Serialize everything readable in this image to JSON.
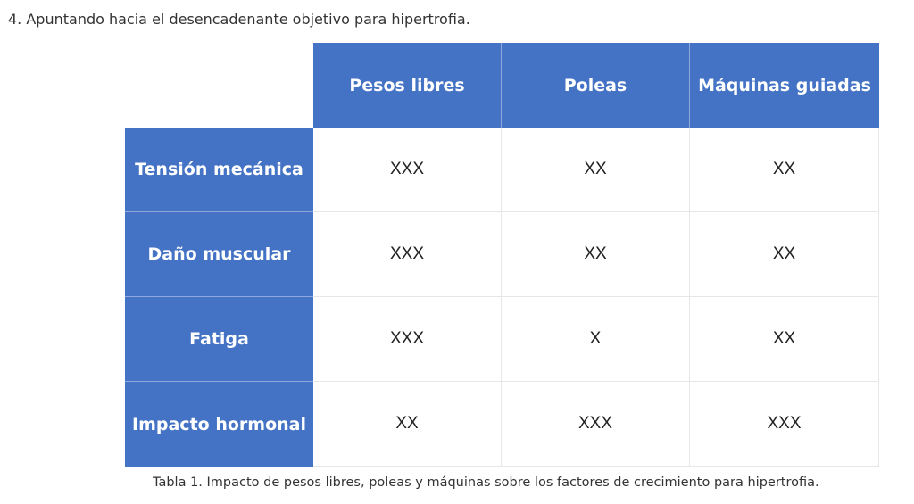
{
  "heading": "4. Apuntando hacia el desencadenante objetivo para hipertrofia.",
  "table": {
    "columns": [
      "Pesos libres",
      "Poleas",
      "Máquinas guiadas"
    ],
    "rows": [
      {
        "label": "Tensión mecánica",
        "values": [
          "XXX",
          "XX",
          "XX"
        ]
      },
      {
        "label": "Daño muscular",
        "values": [
          "XXX",
          "XX",
          "XX"
        ]
      },
      {
        "label": "Fatiga",
        "values": [
          "XXX",
          "X",
          "XX"
        ]
      },
      {
        "label": "Impacto hormonal",
        "values": [
          "XX",
          "XXX",
          "XXX"
        ]
      }
    ],
    "colors": {
      "header_bg": "#4472c4",
      "header_text": "#ffffff"
    }
  },
  "caption": "Tabla 1. Impacto de pesos libres, poleas y máquinas sobre los factores de crecimiento para hipertrofia."
}
